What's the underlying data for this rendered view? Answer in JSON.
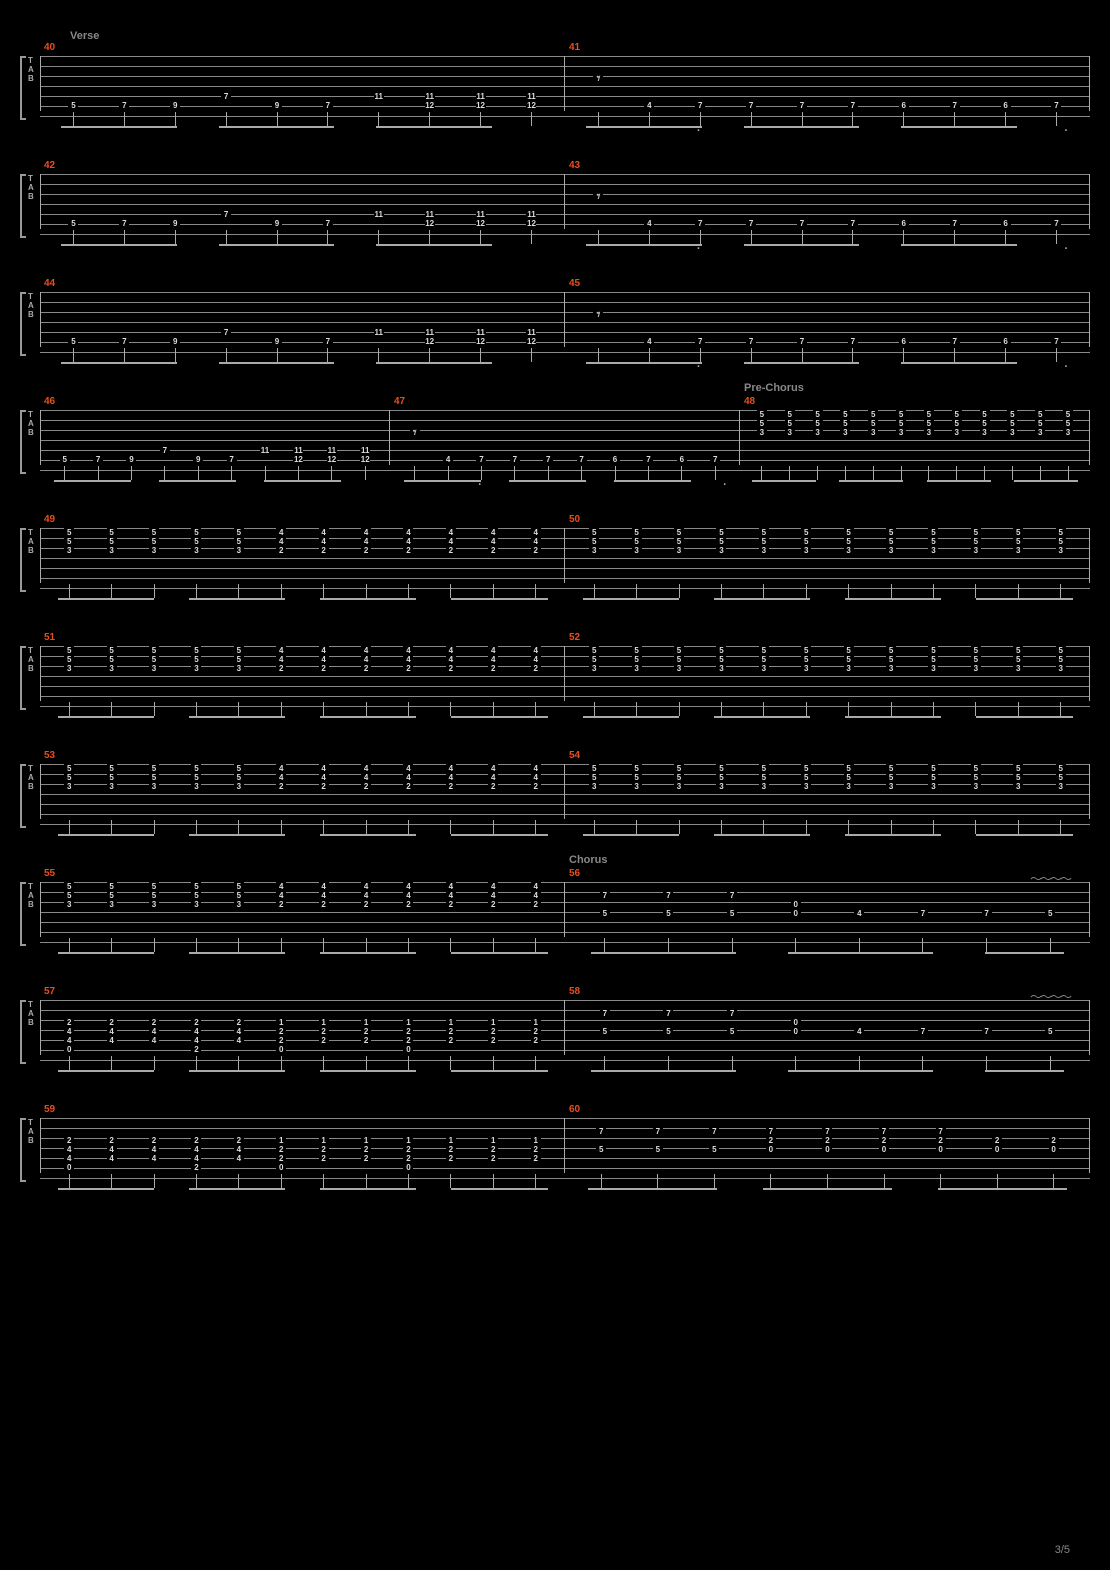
{
  "page_number": "3/5",
  "background_color": "#000000",
  "staff_line_color": "#888888",
  "measure_number_color": "#e94e1b",
  "text_color": "#cccccc",
  "section_color": "#888888",
  "tab_lines": 6,
  "tab_letters": [
    "T",
    "A",
    "B"
  ],
  "sections": [
    {
      "label": "Verse",
      "before_system": 0
    },
    {
      "label": "Pre-Chorus",
      "before_system": 3,
      "inline_measure": 48
    },
    {
      "label": "Chorus",
      "before_system": 7,
      "inline_measure": 56
    }
  ],
  "systems": [
    {
      "measures": [
        {
          "num": 40,
          "pattern": "verseA"
        },
        {
          "num": 41,
          "pattern": "verseB"
        }
      ]
    },
    {
      "measures": [
        {
          "num": 42,
          "pattern": "verseA"
        },
        {
          "num": 43,
          "pattern": "verseB"
        }
      ]
    },
    {
      "measures": [
        {
          "num": 44,
          "pattern": "verseA"
        },
        {
          "num": 45,
          "pattern": "verseB"
        }
      ]
    },
    {
      "measures": [
        {
          "num": 46,
          "pattern": "verseA",
          "narrow": true
        },
        {
          "num": 47,
          "pattern": "verseB",
          "narrow": true
        },
        {
          "num": 48,
          "pattern": "preA",
          "narrow": true,
          "section": "Pre-Chorus"
        }
      ]
    },
    {
      "measures": [
        {
          "num": 49,
          "pattern": "preB"
        },
        {
          "num": 50,
          "pattern": "preA"
        }
      ]
    },
    {
      "measures": [
        {
          "num": 51,
          "pattern": "preB"
        },
        {
          "num": 52,
          "pattern": "preA"
        }
      ]
    },
    {
      "measures": [
        {
          "num": 53,
          "pattern": "preB"
        },
        {
          "num": 54,
          "pattern": "preA"
        }
      ]
    },
    {
      "measures": [
        {
          "num": 55,
          "pattern": "preB"
        },
        {
          "num": 56,
          "pattern": "chorusA",
          "section": "Chorus",
          "vibrato": true
        }
      ]
    },
    {
      "measures": [
        {
          "num": 57,
          "pattern": "chorusB"
        },
        {
          "num": 58,
          "pattern": "chorusA",
          "vibrato": true
        }
      ]
    },
    {
      "measures": [
        {
          "num": 59,
          "pattern": "chorusB"
        },
        {
          "num": 60,
          "pattern": "chorusC"
        }
      ]
    }
  ],
  "patterns": {
    "verseA": {
      "cols": [
        {
          "s6": "5"
        },
        {
          "s6": "7"
        },
        {
          "s6": "9"
        },
        {
          "s5": "7"
        },
        {
          "s6": "9"
        },
        {
          "s6": "7"
        },
        {
          "s5": "11"
        },
        {
          "s5": "11",
          "s6": "12"
        },
        {
          "s5": "11",
          "s6": "12"
        },
        {
          "s5": "11",
          "s6": "12"
        }
      ]
    },
    "verseB": {
      "cols": [
        {
          "rest": "𝄾"
        },
        {
          "s6": "4"
        },
        {
          "s6": "7"
        },
        {
          "s6": "7"
        },
        {
          "s6": "7"
        },
        {
          "s6": "7"
        },
        {
          "s6": "6"
        },
        {
          "s6": "7"
        },
        {
          "s6": "6"
        },
        {
          "s6": "7"
        }
      ],
      "dots": [
        2,
        9
      ]
    },
    "preA": {
      "cols": [
        {
          "s1": "5",
          "s2": "5",
          "s3": "3"
        },
        {
          "s1": "5",
          "s2": "5",
          "s3": "3"
        },
        {
          "s1": "5",
          "s2": "5",
          "s3": "3"
        },
        {
          "s1": "5",
          "s2": "5",
          "s3": "3"
        },
        {
          "s1": "5",
          "s2": "5",
          "s3": "3"
        },
        {
          "s1": "5",
          "s2": "5",
          "s3": "3"
        },
        {
          "s1": "5",
          "s2": "5",
          "s3": "3"
        },
        {
          "s1": "5",
          "s2": "5",
          "s3": "3"
        },
        {
          "s1": "5",
          "s2": "5",
          "s3": "3"
        },
        {
          "s1": "5",
          "s2": "5",
          "s3": "3"
        },
        {
          "s1": "5",
          "s2": "5",
          "s3": "3"
        },
        {
          "s1": "5",
          "s2": "5",
          "s3": "3"
        }
      ]
    },
    "preB": {
      "cols": [
        {
          "s1": "5",
          "s2": "5",
          "s3": "3"
        },
        {
          "s1": "5",
          "s2": "5",
          "s3": "3"
        },
        {
          "s1": "5",
          "s2": "5",
          "s3": "3"
        },
        {
          "s1": "5",
          "s2": "5",
          "s3": "3"
        },
        {
          "s1": "5",
          "s2": "5",
          "s3": "3"
        },
        {
          "s1": "4",
          "s2": "4",
          "s3": "2"
        },
        {
          "s1": "4",
          "s2": "4",
          "s3": "2"
        },
        {
          "s1": "4",
          "s2": "4",
          "s3": "2"
        },
        {
          "s1": "4",
          "s2": "4",
          "s3": "2"
        },
        {
          "s1": "4",
          "s2": "4",
          "s3": "2"
        },
        {
          "s1": "4",
          "s2": "4",
          "s3": "2"
        },
        {
          "s1": "4",
          "s2": "4",
          "s3": "2"
        }
      ]
    },
    "chorusA": {
      "cols": [
        {
          "s2": "7",
          "s4": "5"
        },
        {
          "s2": "7",
          "s4": "5"
        },
        {
          "s2": "7",
          "s4": "5"
        },
        {
          "s3": "0",
          "s4": "0"
        },
        {
          "s4": "4"
        },
        {
          "s4": "7"
        },
        {
          "s4": "7"
        },
        {
          "s4": "5"
        }
      ]
    },
    "chorusB": {
      "cols": [
        {
          "s3": "2",
          "s4": "4",
          "s5": "4",
          "s6": "0"
        },
        {
          "s3": "2",
          "s4": "4",
          "s5": "4"
        },
        {
          "s3": "2",
          "s4": "4",
          "s5": "4"
        },
        {
          "s3": "2",
          "s4": "4",
          "s5": "4",
          "s6": "2"
        },
        {
          "s3": "2",
          "s4": "4",
          "s5": "4"
        },
        {
          "s3": "1",
          "s4": "2",
          "s5": "2",
          "s6": "0"
        },
        {
          "s3": "1",
          "s4": "2",
          "s5": "2"
        },
        {
          "s3": "1",
          "s4": "2",
          "s5": "2"
        },
        {
          "s3": "1",
          "s4": "2",
          "s5": "2",
          "s6": "0"
        },
        {
          "s3": "1",
          "s4": "2",
          "s5": "2"
        },
        {
          "s3": "1",
          "s4": "2",
          "s5": "2"
        },
        {
          "s3": "1",
          "s4": "2",
          "s5": "2"
        }
      ]
    },
    "chorusC": {
      "cols": [
        {
          "s2": "7",
          "s4": "5"
        },
        {
          "s2": "7",
          "s4": "5"
        },
        {
          "s2": "7",
          "s4": "5"
        },
        {
          "s2": "7",
          "s3": "2",
          "s4": "0"
        },
        {
          "s2": "7",
          "s3": "2",
          "s4": "0"
        },
        {
          "s2": "7",
          "s3": "2",
          "s4": "0"
        },
        {
          "s2": "7",
          "s3": "2",
          "s4": "0"
        },
        {
          "s3": "2",
          "s4": "0"
        },
        {
          "s3": "2",
          "s4": "0"
        }
      ]
    }
  }
}
